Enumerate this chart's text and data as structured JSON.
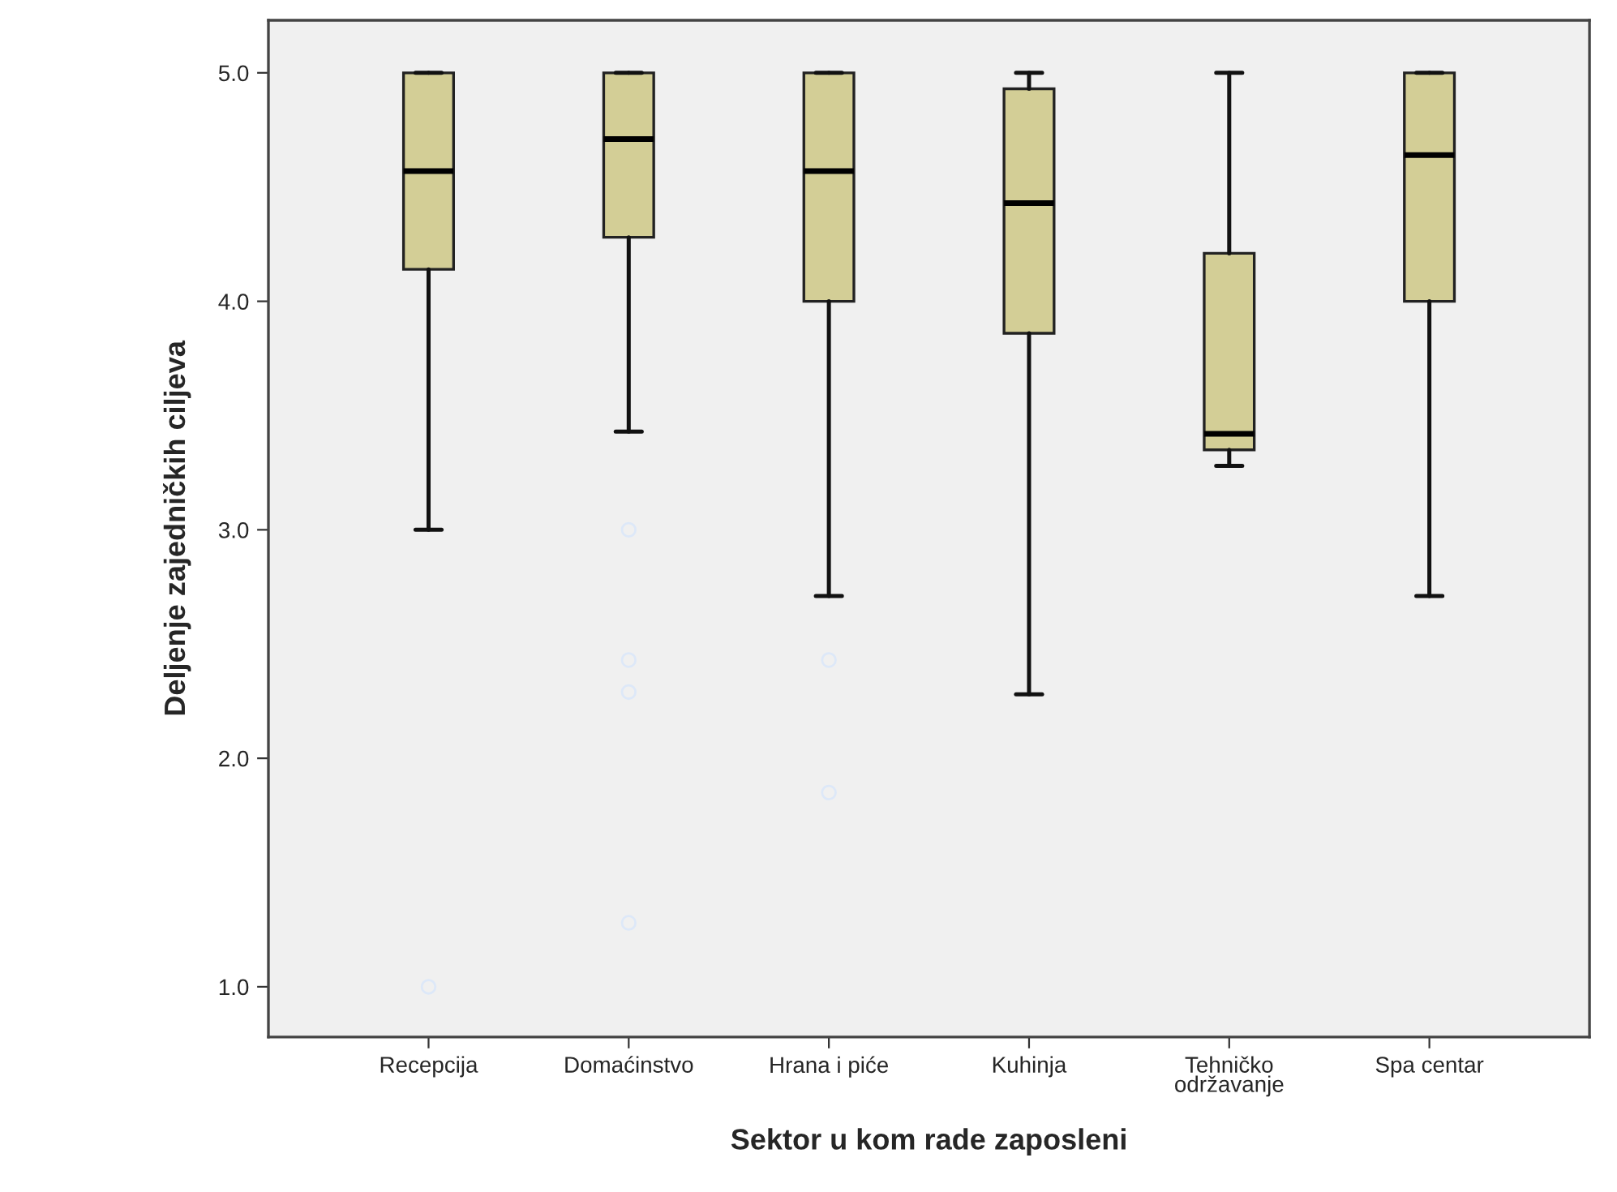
{
  "chart_data": {
    "type": "box",
    "xlabel": "Sektor u kom rade zaposleni",
    "ylabel": "Deljenje zajedničkih cilјeva",
    "categories": [
      "Recepcija",
      "Domaćinstvo",
      "Hrana i piće",
      "Kuhinja",
      "Tehničko\nodržavanje",
      "Spa centar"
    ],
    "series": [
      {
        "color": "#d3ce96",
        "boxes": [
          {
            "low": 3.0,
            "q1": 4.14,
            "median": 4.57,
            "q3": 5.0,
            "high": 5.0,
            "outliers": [
              1.0
            ]
          },
          {
            "low": 3.43,
            "q1": 4.28,
            "median": 4.71,
            "q3": 5.0,
            "high": 5.0,
            "outliers": [
              3.0,
              2.43,
              2.29,
              1.28
            ]
          },
          {
            "low": 2.71,
            "q1": 4.0,
            "median": 4.57,
            "q3": 5.0,
            "high": 5.0,
            "outliers": [
              2.43,
              1.85
            ]
          },
          {
            "low": 2.28,
            "q1": 3.86,
            "median": 4.43,
            "q3": 4.93,
            "high": 5.0
          },
          {
            "low": 3.28,
            "q1": 3.35,
            "median": 3.42,
            "q3": 4.21,
            "high": 5.0
          },
          {
            "low": 2.71,
            "q1": 4.0,
            "median": 4.64,
            "q3": 5.0,
            "high": 5.0
          }
        ]
      }
    ],
    "ylim": [
      0.78,
      5.23
    ],
    "yticks": [
      {
        "value": 1,
        "label": "1.0"
      },
      {
        "value": 2,
        "label": "2.0"
      },
      {
        "value": 3,
        "label": "3.0"
      },
      {
        "value": 4,
        "label": "4.0"
      },
      {
        "value": 5,
        "label": "5.0"
      }
    ],
    "grid": false,
    "legend": false
  }
}
